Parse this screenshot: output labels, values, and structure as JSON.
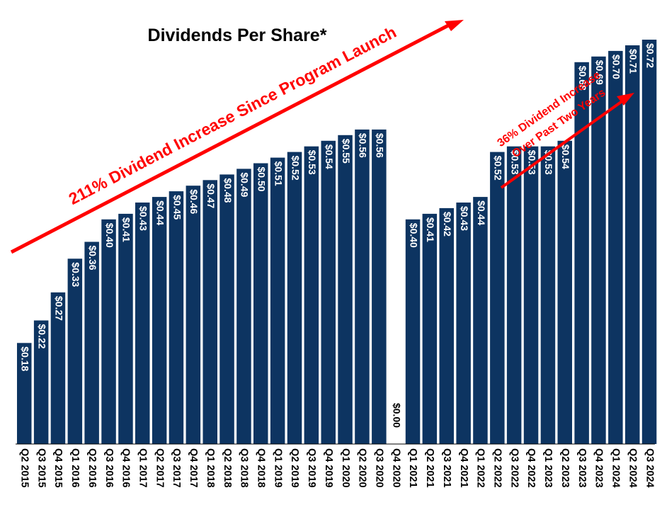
{
  "chart_data": {
    "type": "bar",
    "title": "Dividends Per Share*",
    "xlabel": "",
    "ylabel": "",
    "ylim": [
      0,
      0.75
    ],
    "grid": false,
    "legend": "none",
    "categories": [
      "Q2 2015",
      "Q3 2015",
      "Q4 2015",
      "Q1 2016",
      "Q2 2016",
      "Q3 2016",
      "Q4 2016",
      "Q1 2017",
      "Q2 2017",
      "Q3 2017",
      "Q4 2017",
      "Q1 2018",
      "Q2 2018",
      "Q3 2018",
      "Q4 2018",
      "Q1 2019",
      "Q2 2019",
      "Q3 2019",
      "Q4 2019",
      "Q1 2020",
      "Q2 2020",
      "Q3 2020",
      "Q4 2020",
      "Q1 2021",
      "Q2 2021",
      "Q3 2021",
      "Q4 2021",
      "Q1 2022",
      "Q2 2022",
      "Q3 2022",
      "Q4 2022",
      "Q1 2023",
      "Q2 2023",
      "Q3 2023",
      "Q4 2023",
      "Q1 2024",
      "Q2 2024",
      "Q3 2024"
    ],
    "values": [
      0.18,
      0.22,
      0.27,
      0.33,
      0.36,
      0.4,
      0.41,
      0.43,
      0.44,
      0.45,
      0.46,
      0.47,
      0.48,
      0.49,
      0.5,
      0.51,
      0.52,
      0.53,
      0.54,
      0.55,
      0.56,
      0.56,
      0.0,
      0.4,
      0.41,
      0.42,
      0.43,
      0.44,
      0.52,
      0.53,
      0.53,
      0.53,
      0.54,
      0.68,
      0.69,
      0.7,
      0.71,
      0.72
    ],
    "value_labels": [
      "$0.18",
      "$0.22",
      "$0.27",
      "$0.33",
      "$0.36",
      "$0.40",
      "$0.41",
      "$0.43",
      "$0.44",
      "$0.45",
      "$0.46",
      "$0.47",
      "$0.48",
      "$0.49",
      "$0.50",
      "$0.51",
      "$0.52",
      "$0.53",
      "$0.54",
      "$0.55",
      "$0.56",
      "$0.56",
      "$0.00",
      "$0.40",
      "$0.41",
      "$0.42",
      "$0.43",
      "$0.44",
      "$0.52",
      "$0.53",
      "$0.53",
      "$0.53",
      "$0.54",
      "$0.68",
      "$0.69",
      "$0.70",
      "$0.71",
      "$0.72"
    ],
    "annotations": [
      {
        "text": "211% Dividend Increase Since Program Launch"
      },
      {
        "text": "36% Dividend Increase"
      },
      {
        "text": "Over Past Two Years"
      }
    ],
    "colors": {
      "bar": "#0d3461",
      "label": "#ffffff",
      "zero_label": "#000000",
      "annotation": "#ff0000",
      "text": "#000000"
    }
  }
}
